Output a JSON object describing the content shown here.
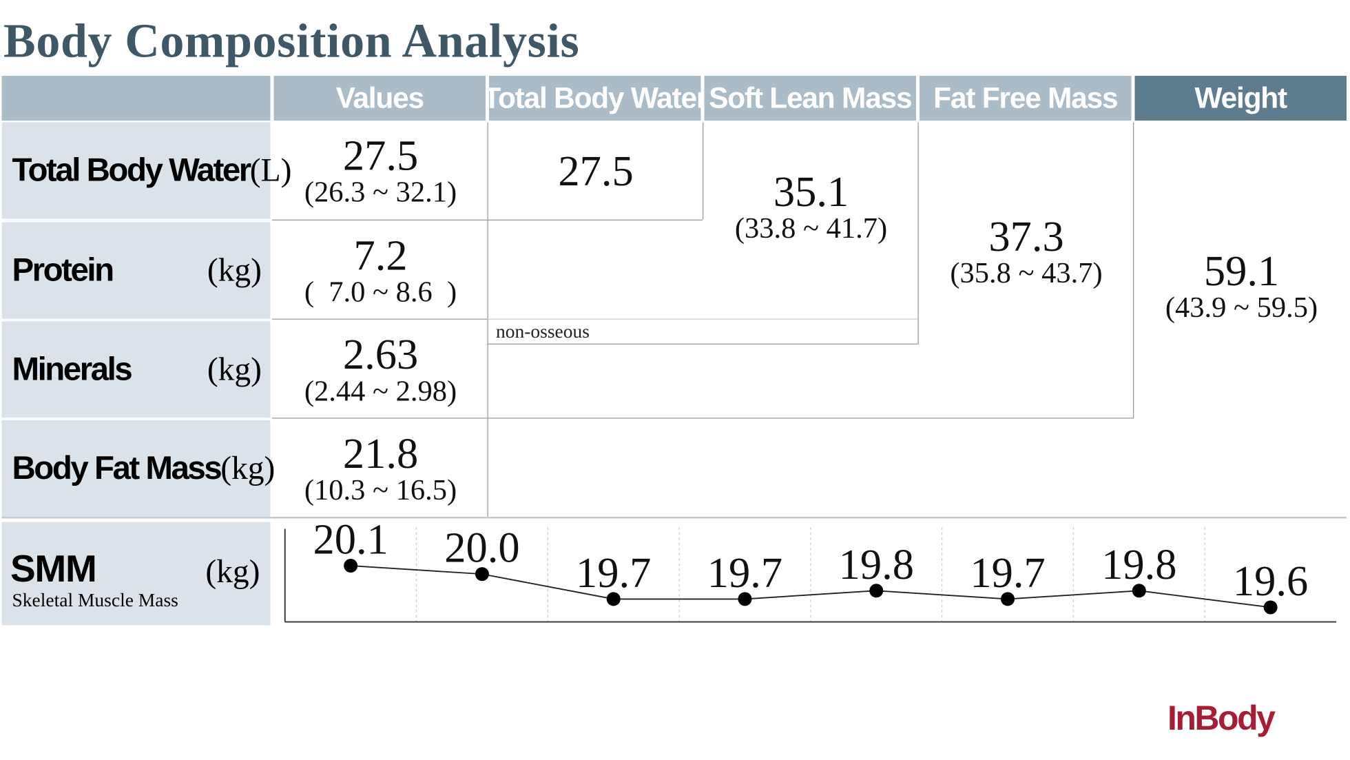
{
  "title": "Body Composition Analysis",
  "headers": {
    "values": "Values",
    "tbw": "Total Body Water",
    "slm": "Soft Lean Mass",
    "ffm": "Fat Free Mass",
    "weight": "Weight"
  },
  "rows": {
    "tbw": {
      "name": "Total Body Water",
      "unit": "(L)",
      "value": "27.5",
      "range": "(26.3 ~ 32.1)"
    },
    "protein": {
      "name": "Protein",
      "unit": "(kg)",
      "value": "7.2",
      "range": "(  7.0 ~ 8.6  )"
    },
    "minerals": {
      "name": "Minerals",
      "unit": "(kg)",
      "value": "2.63",
      "range": "(2.44 ~ 2.98)"
    },
    "bfm": {
      "name": "Body Fat Mass",
      "unit": "(kg)",
      "value": "21.8",
      "range": "(10.3 ~ 16.5)"
    }
  },
  "cumulative": {
    "tbw": {
      "value": "27.5"
    },
    "slm": {
      "value": "35.1",
      "range": "(33.8 ~ 41.7)"
    },
    "ffm": {
      "value": "37.3",
      "range": "(35.8 ~ 43.7)"
    },
    "weight": {
      "value": "59.1",
      "range": "(43.9 ~ 59.5)"
    }
  },
  "note": "non-osseous",
  "smm": {
    "title": "SMM",
    "subtitle": "Skeletal Muscle Mass",
    "unit": "(kg)"
  },
  "chart_data": {
    "type": "line",
    "x": [
      1,
      2,
      3,
      4,
      5,
      6,
      7,
      8
    ],
    "values": [
      20.1,
      20.0,
      19.7,
      19.7,
      19.8,
      19.7,
      19.8,
      19.6
    ],
    "labels": [
      "20.1",
      "20.0",
      "19.7",
      "19.7",
      "19.8",
      "19.7",
      "19.8",
      "19.6"
    ],
    "ylim": [
      19.55,
      20.15
    ],
    "grid": true,
    "color": "#000000"
  },
  "logo": "InBody",
  "colors": {
    "header": "#a9bcc8",
    "header_dark": "#5d7d8e",
    "label_bg": "#dae3ea",
    "title": "#3f5867",
    "logo": "#a61d36"
  }
}
